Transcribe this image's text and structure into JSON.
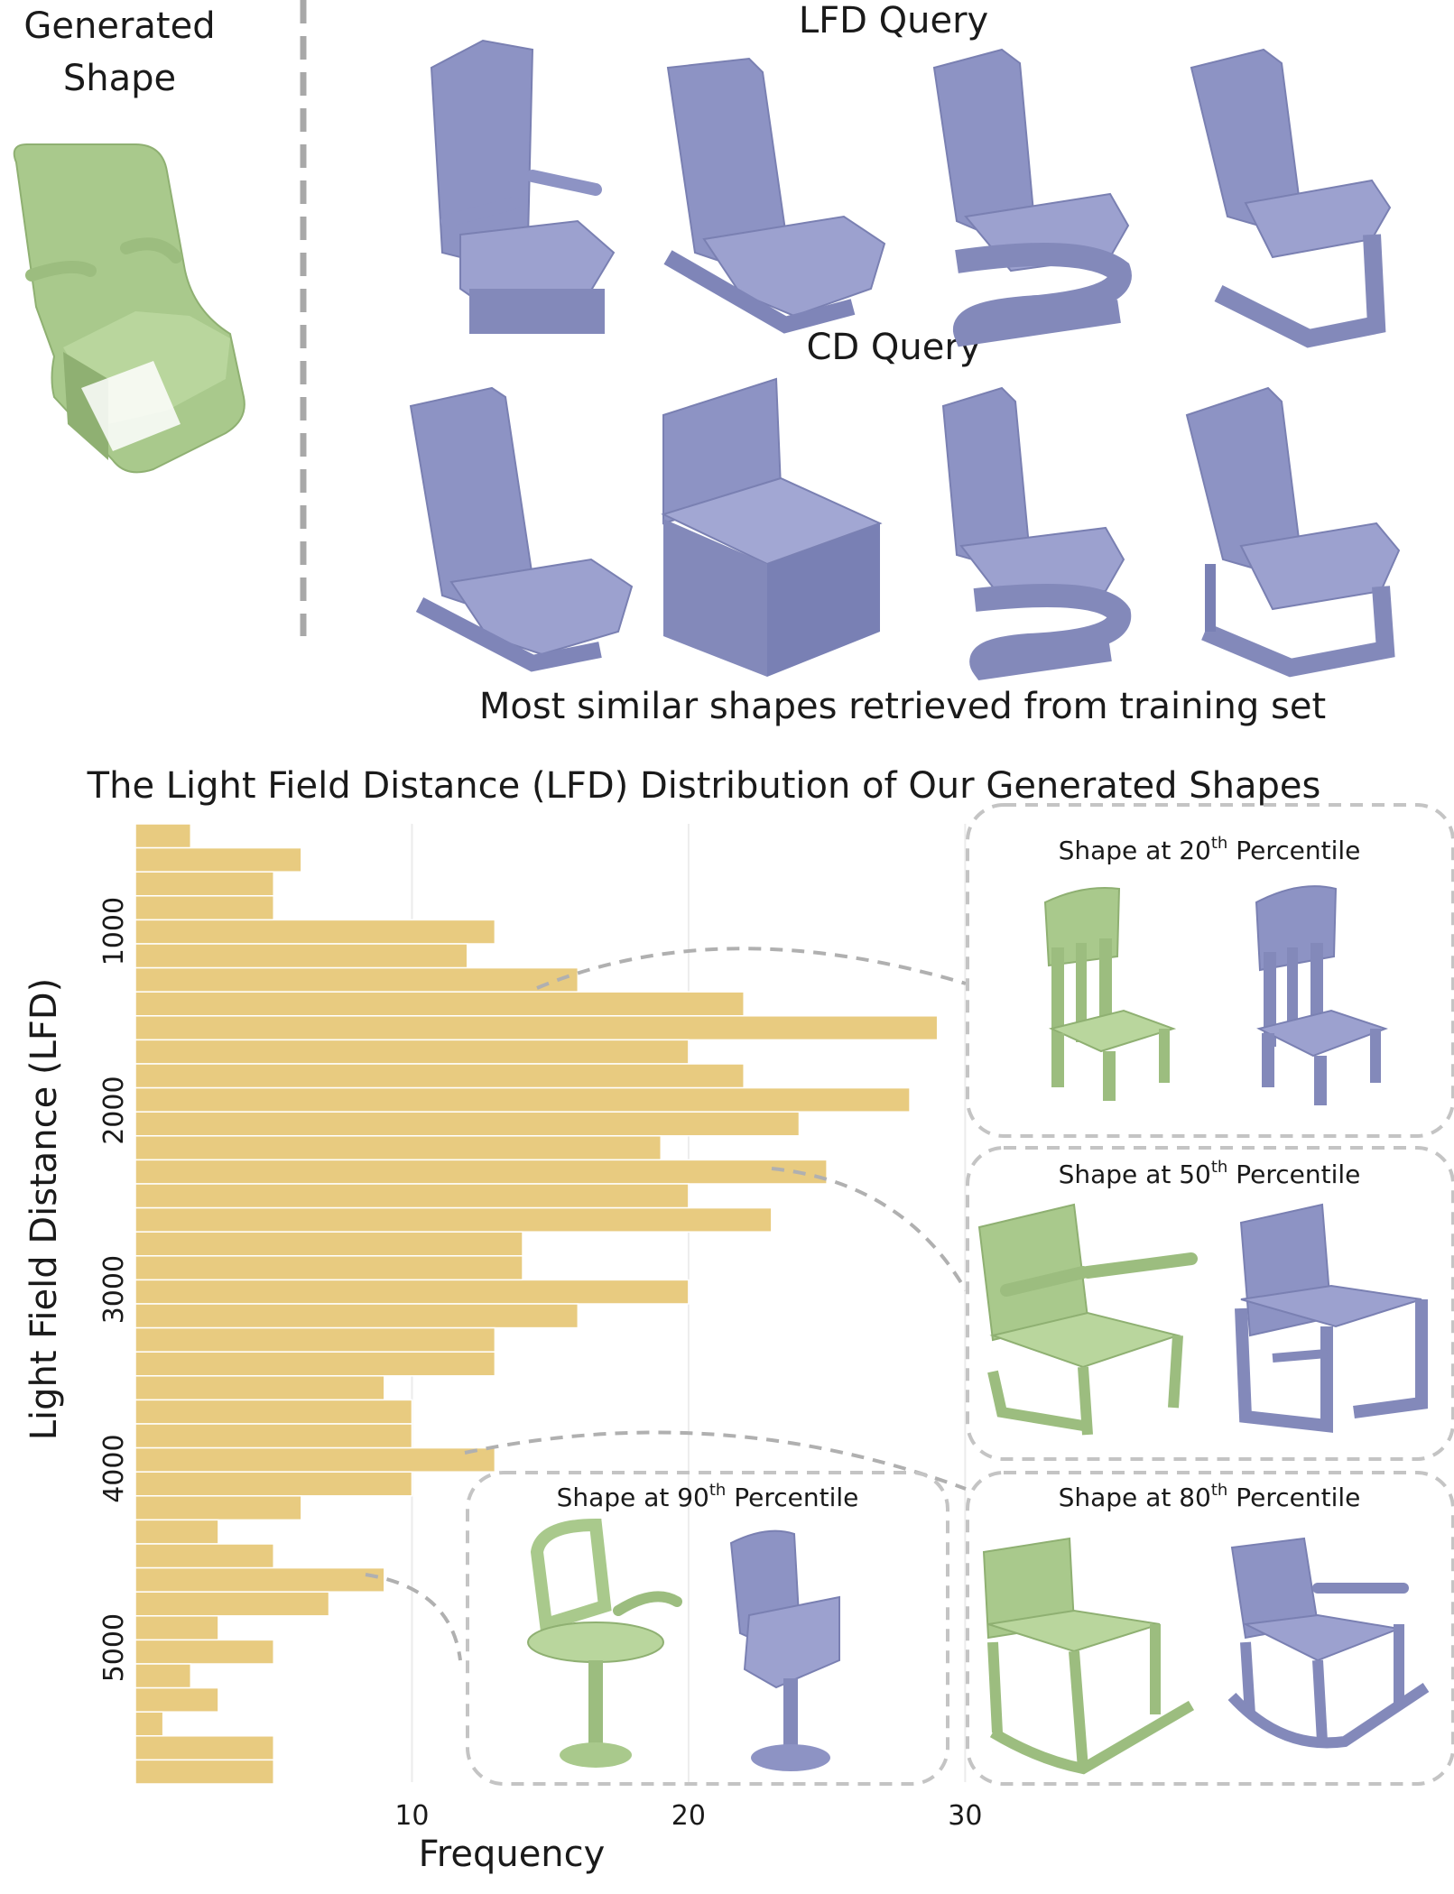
{
  "top_panel": {
    "generated_caption_line1": "Generated",
    "generated_caption_line2": "Shape",
    "lfd_query_title": "LFD Query",
    "cd_query_title": "CD Query",
    "retrieved_caption": "Most similar shapes retrieved from training set"
  },
  "colors": {
    "generated_shape": "#a9c98c",
    "retrieved_shape": "#8d93c4",
    "bar_fill": "#e8cb80",
    "dashed_line": "#b0b0b0"
  },
  "chart_data": {
    "type": "bar",
    "orientation": "horizontal",
    "title": "The Light Field Distance (LFD) Distribution of Our Generated Shapes",
    "xlabel": "Frequency",
    "ylabel": "Light Field Distance (LFD)",
    "xlim": [
      0,
      31
    ],
    "ylim": [
      400,
      5750
    ],
    "x_ticks": [
      10,
      20,
      30
    ],
    "y_ticks": [
      1000,
      2000,
      3000,
      4000,
      5000
    ],
    "bin_width": 134,
    "y_start": 400,
    "grid": "vertical",
    "values": [
      2,
      6,
      5,
      5,
      13,
      12,
      16,
      22,
      29,
      20,
      22,
      28,
      24,
      19,
      25,
      20,
      23,
      14,
      14,
      20,
      16,
      13,
      13,
      9,
      10,
      10,
      13,
      10,
      6,
      3,
      5,
      9,
      7,
      3,
      5,
      2,
      3,
      1,
      5,
      5
    ]
  },
  "percentile_panels": [
    {
      "id": "p20",
      "prefix": "Shape at 20",
      "sup": "th",
      "suffix": " Percentile"
    },
    {
      "id": "p50",
      "prefix": "Shape at 50",
      "sup": "th",
      "suffix": " Percentile"
    },
    {
      "id": "p80",
      "prefix": "Shape at 80",
      "sup": "th",
      "suffix": " Percentile"
    },
    {
      "id": "p90",
      "prefix": "Shape at 90",
      "sup": "th",
      "suffix": " Percentile"
    }
  ]
}
